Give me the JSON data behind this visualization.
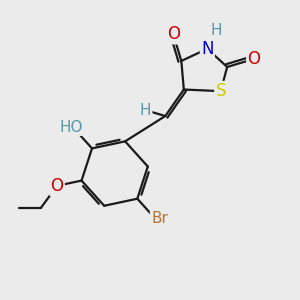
{
  "background_color": "#ebebeb",
  "bond_color": "#1a1a1a",
  "atoms": {
    "S": {
      "color": "#cccc00",
      "fontsize": 12
    },
    "N": {
      "color": "#0000cc",
      "fontsize": 12
    },
    "O": {
      "color": "#cc0000",
      "fontsize": 12
    },
    "Br": {
      "color": "#b87333",
      "fontsize": 11
    },
    "H_ring": {
      "color": "#5599aa",
      "fontsize": 11
    },
    "HO": {
      "color": "#5599aa",
      "fontsize": 11
    }
  },
  "figsize": [
    3.0,
    3.0
  ],
  "dpi": 100
}
